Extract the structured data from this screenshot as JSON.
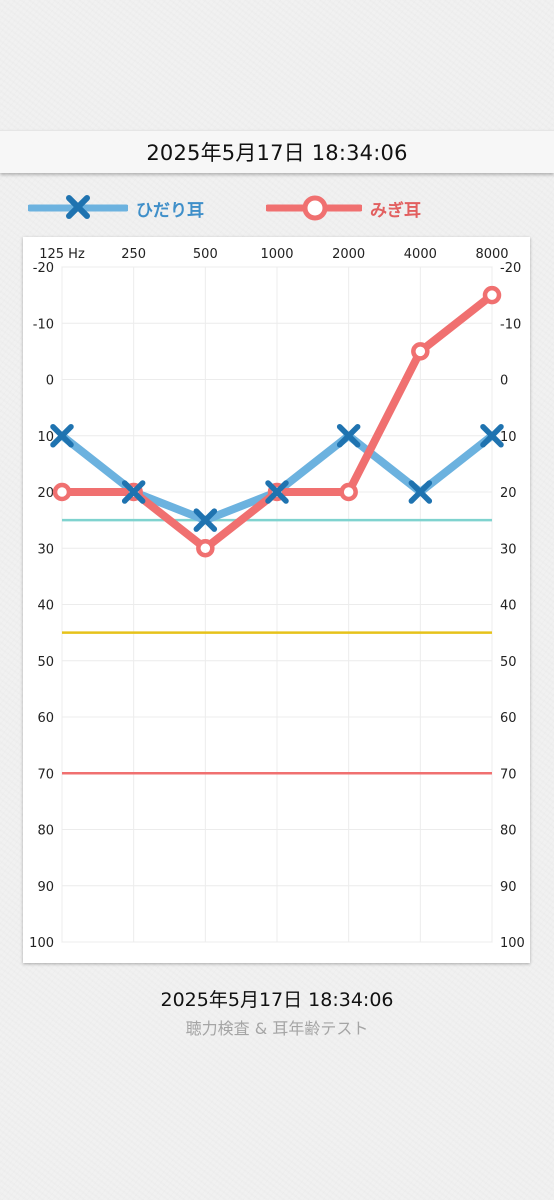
{
  "header": {
    "datetime": "2025年5月17日 18:34:06"
  },
  "legend": {
    "left": {
      "label": "ひだり耳",
      "color": "#6cb2df",
      "marker_color": "#1f73b0",
      "icon": "x-marker-icon"
    },
    "right": {
      "label": "みぎ耳",
      "color": "#f07070",
      "marker_color": "#f07070",
      "icon": "circle-marker-icon"
    }
  },
  "chart_data": {
    "type": "line",
    "x": [
      "125 Hz",
      "250",
      "500",
      "1000",
      "2000",
      "4000",
      "8000"
    ],
    "y_ticks": [
      "-20",
      "-10",
      "0",
      "10",
      "20",
      "30",
      "40",
      "50",
      "60",
      "70",
      "80",
      "90",
      "100"
    ],
    "ylim": [
      -20,
      100
    ],
    "y_inverted": true,
    "grid": true,
    "series": [
      {
        "name": "ひだり耳",
        "values": [
          10,
          20,
          25,
          20,
          10,
          20,
          10
        ],
        "color": "#6cb2df",
        "marker": "x",
        "marker_color": "#1f73b0"
      },
      {
        "name": "みぎ耳",
        "values": [
          20,
          20,
          30,
          20,
          20,
          -5,
          -15
        ],
        "color": "#f07070",
        "marker": "o",
        "marker_color": "#f07070"
      }
    ],
    "reference_lines": [
      {
        "y": 25,
        "color": "#7fd3cf"
      },
      {
        "y": 45,
        "color": "#e6c21a"
      },
      {
        "y": 70,
        "color": "#f07070"
      }
    ]
  },
  "footer": {
    "datetime": "2025年5月17日 18:34:06",
    "app_name": "聴力検査 & 耳年齢テスト"
  }
}
